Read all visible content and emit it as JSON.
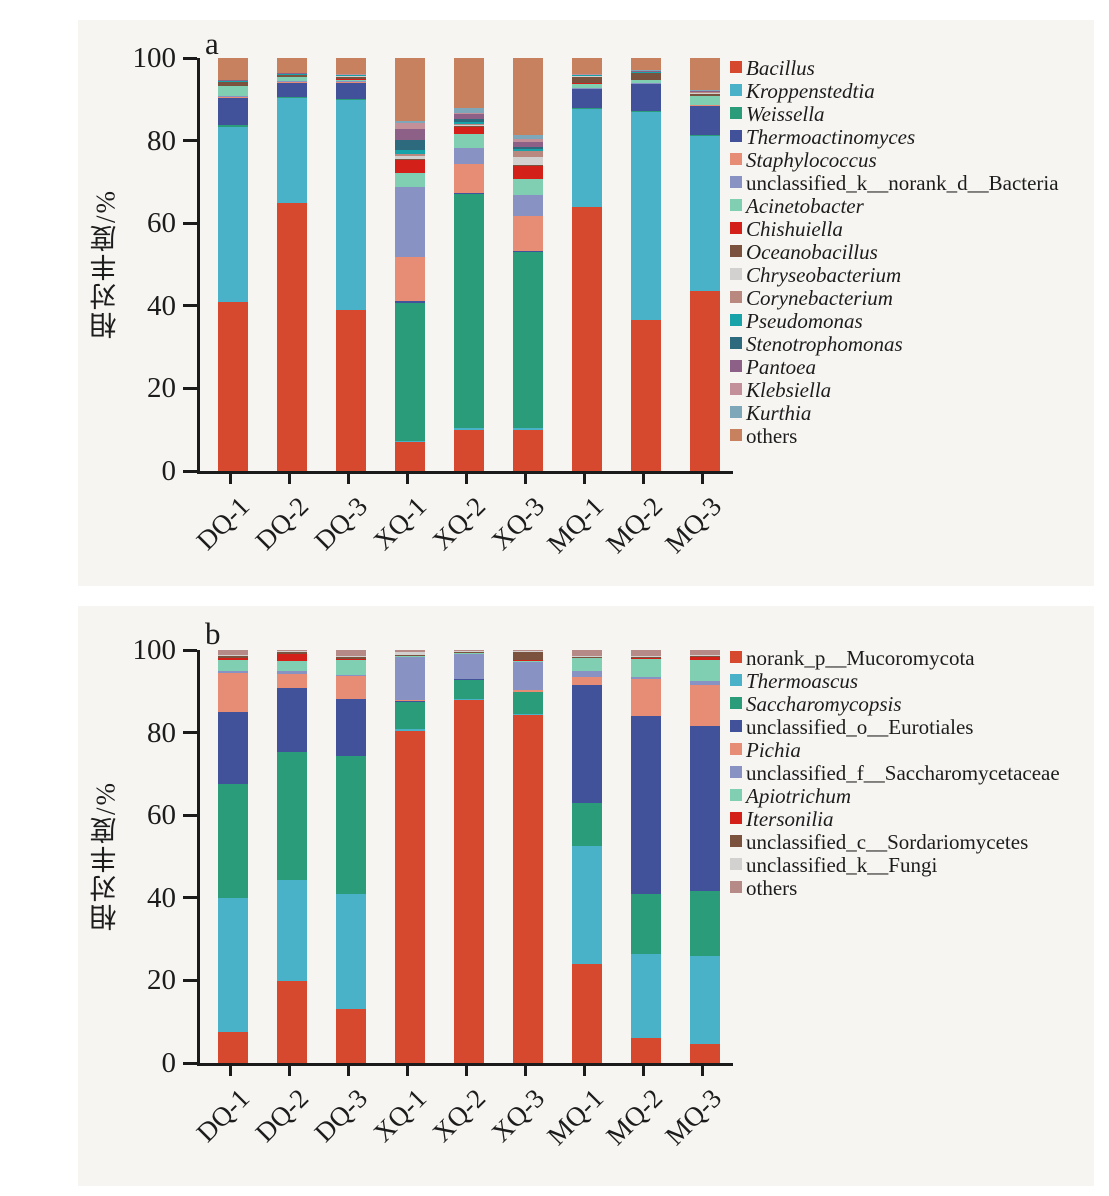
{
  "figure": {
    "description": "Stacked bar charts of microbial community relative abundance",
    "x_axis_categories": [
      "DQ-1",
      "DQ-2",
      "DQ-3",
      "XQ-1",
      "XQ-2",
      "XQ-3",
      "MQ-1",
      "MQ-2",
      "MQ-3"
    ],
    "background_color": "#f6f5f2",
    "axis_color": "#1b1b1b"
  },
  "chart_data": [
    {
      "type": "bar",
      "stacked": true,
      "panel": "a",
      "panel_label": "a",
      "title": "",
      "xlabel": "",
      "ylabel": "相对丰度/%",
      "ylim": [
        0,
        100
      ],
      "y_ticks": [
        0,
        20,
        40,
        60,
        80,
        100
      ],
      "grid": false,
      "legend_position": "right",
      "categories": [
        "DQ-1",
        "DQ-2",
        "DQ-3",
        "XQ-1",
        "XQ-2",
        "XQ-3",
        "MQ-1",
        "MQ-2",
        "MQ-3"
      ],
      "series": [
        {
          "name": "Bacillus",
          "italic": true,
          "color": "#d6492f",
          "values": [
            41,
            65,
            39,
            7,
            10,
            10,
            64,
            36.5,
            44
          ]
        },
        {
          "name": "Kroppenstedtia",
          "italic": true,
          "color": "#49b2c8",
          "values": [
            42.5,
            25.5,
            51,
            0.3,
            0.3,
            0.3,
            24,
            50.5,
            38
          ]
        },
        {
          "name": "Weissella",
          "italic": true,
          "color": "#2a9c79",
          "values": [
            0.3,
            0.3,
            0.3,
            33.5,
            56.7,
            42.7,
            0.2,
            0.2,
            0.4
          ]
        },
        {
          "name": "Thermoactinomyces",
          "italic": true,
          "color": "#41519a",
          "values": [
            6.5,
            3.5,
            4,
            0.4,
            0.3,
            0.3,
            4.5,
            6.5,
            7
          ]
        },
        {
          "name": "Staphylococcus",
          "italic": true,
          "color": "#e78c75",
          "values": [
            0.3,
            0.2,
            0.2,
            10.8,
            7,
            8.5,
            0.1,
            0.1,
            0.2
          ]
        },
        {
          "name": "unclassified_k__norank_d__Bacteria",
          "italic": false,
          "color": "#8893c4",
          "values": [
            0.2,
            0.2,
            0.2,
            17,
            4,
            5,
            0.3,
            0.2,
            0.2
          ]
        },
        {
          "name": "Acinetobacter",
          "italic": true,
          "color": "#81cfb3",
          "values": [
            2.5,
            1,
            0.3,
            3.5,
            3.2,
            4,
            1,
            0.8,
            2
          ]
        },
        {
          "name": "Chishuiella",
          "italic": true,
          "color": "#d32019",
          "values": [
            0.1,
            0.1,
            0.1,
            3,
            1.8,
            3,
            0.1,
            0.1,
            0.1
          ]
        },
        {
          "name": "Oceanobacillus",
          "italic": true,
          "color": "#7a523d",
          "values": [
            0.8,
            0.3,
            0.7,
            0.3,
            0.2,
            0.4,
            1.5,
            1.5,
            0.6
          ]
        },
        {
          "name": "Chryseobacterium",
          "italic": true,
          "color": "#d2d1cf",
          "values": [
            0.1,
            0.1,
            0.1,
            0.7,
            0.3,
            1.8,
            0.2,
            0.1,
            0.2
          ]
        },
        {
          "name": "Corynebacterium",
          "italic": true,
          "color": "#b9897f",
          "values": [
            0.1,
            0.1,
            0.1,
            0.5,
            0.3,
            1.5,
            0.1,
            0.1,
            0.1
          ]
        },
        {
          "name": "Pseudomonas",
          "italic": true,
          "color": "#17a3a8",
          "values": [
            0.1,
            0.1,
            0.1,
            1,
            0.5,
            0.5,
            0.1,
            0.1,
            0.1
          ]
        },
        {
          "name": "Stenotrophomonas",
          "italic": true,
          "color": "#2e6a7e",
          "values": [
            0.1,
            0.1,
            0.1,
            2.5,
            0.7,
            0.5,
            0.1,
            0.1,
            0.1
          ]
        },
        {
          "name": "Pantoea",
          "italic": true,
          "color": "#8d6187",
          "values": [
            0.1,
            0.1,
            0.1,
            2.5,
            1.2,
            1.2,
            0.1,
            0.1,
            0.1
          ]
        },
        {
          "name": "Klebsiella",
          "italic": true,
          "color": "#c38f99",
          "values": [
            0.1,
            0.1,
            0.1,
            1.5,
            0.3,
            0.6,
            0.1,
            0.1,
            0.1
          ]
        },
        {
          "name": "Kurthia",
          "italic": true,
          "color": "#7ea7ba",
          "values": [
            0.1,
            0.1,
            0.1,
            0.5,
            1.2,
            1,
            0.1,
            0.1,
            0.1
          ]
        },
        {
          "name": "others",
          "italic": false,
          "color": "#c8815e",
          "values": [
            5.2,
            3.5,
            3.8,
            15.3,
            12,
            18.7,
            3.8,
            3,
            7.9
          ]
        }
      ]
    },
    {
      "type": "bar",
      "stacked": true,
      "panel": "b",
      "panel_label": "b",
      "title": "",
      "xlabel": "",
      "ylabel": "相对丰度/%",
      "ylim": [
        0,
        100
      ],
      "y_ticks": [
        0,
        20,
        40,
        60,
        80,
        100
      ],
      "grid": false,
      "legend_position": "right",
      "categories": [
        "DQ-1",
        "DQ-2",
        "DQ-3",
        "XQ-1",
        "XQ-2",
        "XQ-3",
        "MQ-1",
        "MQ-2",
        "MQ-3"
      ],
      "series": [
        {
          "name": "norank_p__Mucoromycota",
          "italic": false,
          "color": "#d6492f",
          "values": [
            7.5,
            20,
            13,
            80.5,
            88,
            84.5,
            24,
            6,
            4.5
          ]
        },
        {
          "name": "Thermoascus",
          "italic": true,
          "color": "#49b2c8",
          "values": [
            32.5,
            24.5,
            28,
            0.3,
            0.2,
            0.2,
            28.5,
            20.5,
            21.5
          ]
        },
        {
          "name": "Saccharomycopsis",
          "italic": true,
          "color": "#2a9c79",
          "values": [
            27.5,
            31,
            33.5,
            6.5,
            4.5,
            5.2,
            10.5,
            14.5,
            15.5
          ]
        },
        {
          "name": "unclassified_o__Eurotiales",
          "italic": false,
          "color": "#41519a",
          "values": [
            17.5,
            15.5,
            14,
            0.3,
            0.2,
            0.2,
            28.5,
            43,
            40
          ]
        },
        {
          "name": "Pichia",
          "italic": true,
          "color": "#e78c75",
          "values": [
            9.5,
            3.5,
            5.5,
            0.2,
            0.2,
            0.3,
            2,
            9,
            10
          ]
        },
        {
          "name": "unclassified_f__Saccharomycetaceae",
          "italic": false,
          "color": "#8893c4",
          "values": [
            0.5,
            0.7,
            0.3,
            10.5,
            6,
            7,
            1.5,
            0.5,
            0.8
          ]
        },
        {
          "name": "Apiotrichum",
          "italic": true,
          "color": "#81cfb3",
          "values": [
            2.5,
            2.3,
            3.5,
            0.2,
            0.2,
            0.2,
            3,
            4.5,
            5.2
          ]
        },
        {
          "name": "Itersonilia",
          "italic": true,
          "color": "#d32019",
          "values": [
            0.5,
            1.8,
            0.3,
            0.1,
            0.1,
            0.1,
            0.1,
            0.2,
            0.7
          ]
        },
        {
          "name": "unclassified_c__Sordariomycetes",
          "italic": false,
          "color": "#7a523d",
          "values": [
            0.5,
            0.4,
            0.5,
            0.2,
            0.1,
            2,
            0.3,
            0.2,
            0.2
          ]
        },
        {
          "name": "unclassified_k__Fungi",
          "italic": false,
          "color": "#d2d1cf",
          "values": [
            0.3,
            0.2,
            0.2,
            0.7,
            0.3,
            0.3,
            0.2,
            0.2,
            0.2
          ]
        },
        {
          "name": "others",
          "italic": false,
          "color": "#b58a87",
          "values": [
            1.2,
            0.3,
            1.5,
            0.5,
            0.2,
            0.2,
            1.4,
            1.5,
            1.3
          ]
        }
      ]
    }
  ]
}
